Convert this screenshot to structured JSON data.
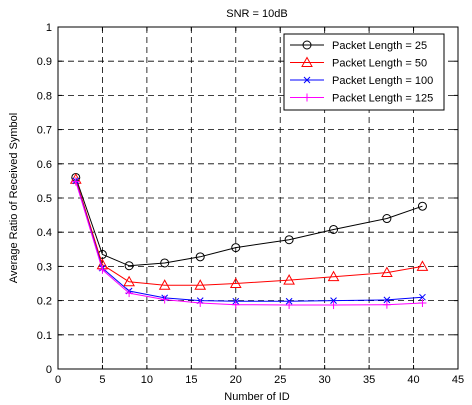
{
  "chart_data": {
    "type": "line",
    "title": "SNR = 10dB",
    "xlabel": "Number of ID",
    "ylabel": "Average Ratio of Received Symbol",
    "xlim": [
      0,
      45
    ],
    "ylim": [
      0,
      1
    ],
    "xticks": [
      "0",
      "5",
      "10",
      "15",
      "20",
      "25",
      "30",
      "35",
      "40",
      "45"
    ],
    "yticks": [
      "0",
      "0.1",
      "0.2",
      "0.3",
      "0.4",
      "0.5",
      "0.6",
      "0.7",
      "0.8",
      "0.9",
      "1"
    ],
    "grid": true,
    "legend_position": "top-right",
    "x": [
      2,
      5,
      8,
      12,
      16,
      20,
      26,
      31,
      37,
      41
    ],
    "series": [
      {
        "name": "Packet Length = 25",
        "color": "#000000",
        "marker": "circle",
        "values": [
          0.56,
          0.335,
          0.302,
          0.31,
          0.328,
          0.355,
          0.378,
          0.408,
          0.44,
          0.476
        ]
      },
      {
        "name": "Packet Length = 50",
        "color": "#ff0000",
        "marker": "triangle",
        "values": [
          0.555,
          0.305,
          0.255,
          0.245,
          0.245,
          0.25,
          0.26,
          0.27,
          0.282,
          0.3
        ]
      },
      {
        "name": "Packet Length = 100",
        "color": "#0000ff",
        "marker": "x",
        "values": [
          0.55,
          0.295,
          0.228,
          0.208,
          0.2,
          0.198,
          0.198,
          0.2,
          0.202,
          0.21
        ]
      },
      {
        "name": "Packet Length = 125",
        "color": "#ff00ff",
        "marker": "plus",
        "values": [
          0.548,
          0.29,
          0.222,
          0.203,
          0.193,
          0.188,
          0.187,
          0.187,
          0.188,
          0.193
        ]
      }
    ]
  }
}
